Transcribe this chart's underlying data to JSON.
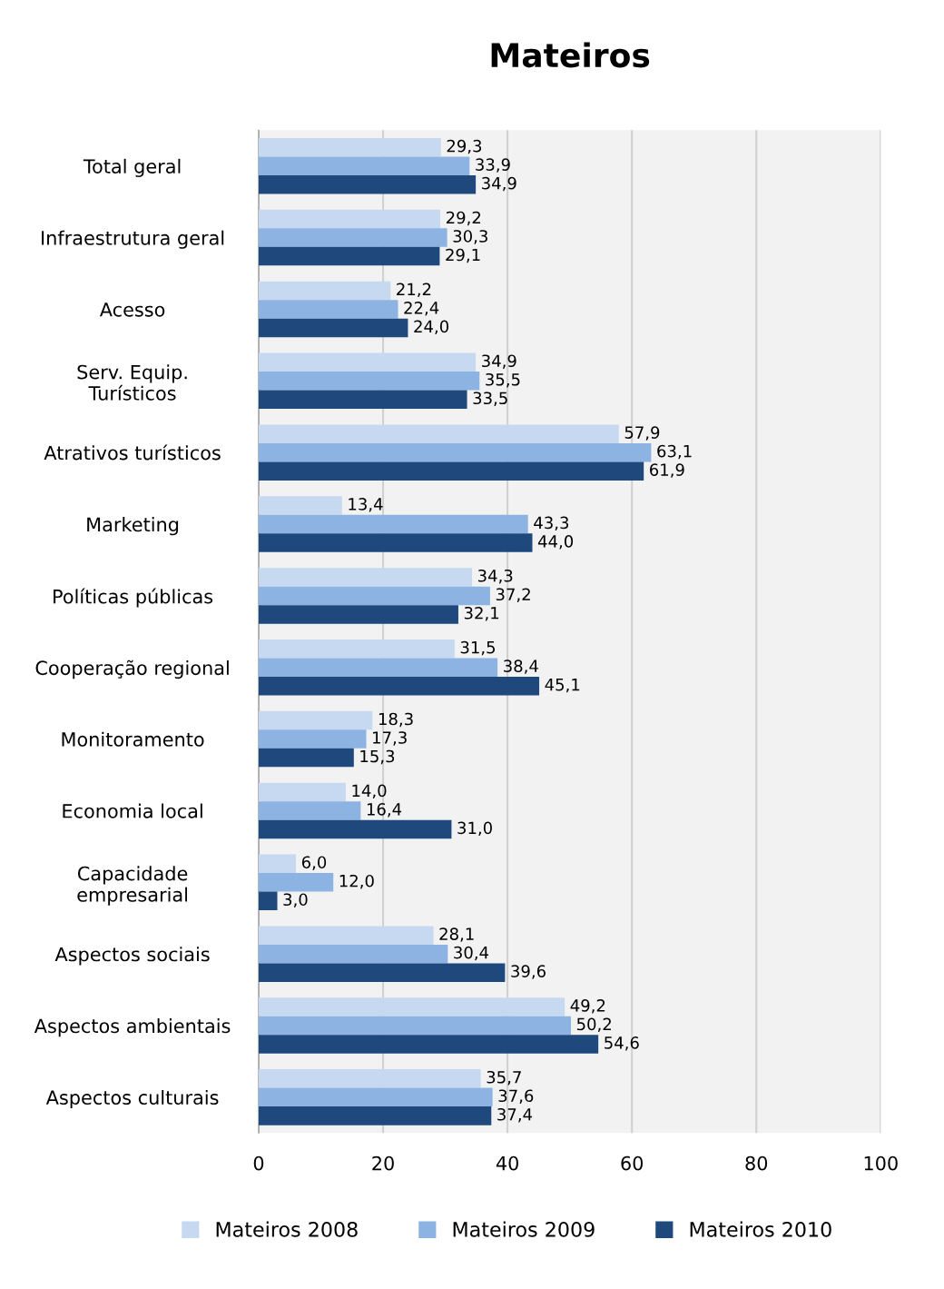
{
  "chart_data": {
    "type": "bar",
    "orientation": "horizontal",
    "title": "Mateiros",
    "categories": [
      "Total geral",
      "Infraestrutura geral",
      "Acesso",
      "Serv. Equip.\nTurísticos",
      "Atrativos turísticos",
      "Marketing",
      "Políticas públicas",
      "Cooperação regional",
      "Monitoramento",
      "Economia local",
      "Capacidade\nempresarial",
      "Aspectos sociais",
      "Aspectos ambientais",
      "Aspectos culturais"
    ],
    "series": [
      {
        "name": "Mateiros 2008",
        "color": "#c6d9f1",
        "values": [
          29.3,
          29.2,
          21.2,
          34.9,
          57.9,
          13.4,
          34.3,
          31.5,
          18.3,
          14.0,
          6.0,
          28.1,
          49.2,
          35.7
        ],
        "value_labels": [
          "29,3",
          "29,2",
          "21,2",
          "34,9",
          "57,9",
          "13,4",
          "34,3",
          "31,5",
          "18,3",
          "14,0",
          "6,0",
          "28,1",
          "49,2",
          "35,7"
        ]
      },
      {
        "name": "Mateiros 2009",
        "color": "#8db3e2",
        "values": [
          33.9,
          30.3,
          22.4,
          35.5,
          63.1,
          43.3,
          37.2,
          38.4,
          17.3,
          16.4,
          12.0,
          30.4,
          50.2,
          37.6
        ],
        "value_labels": [
          "33,9",
          "30,3",
          "22,4",
          "35,5",
          "63,1",
          "43,3",
          "37,2",
          "38,4",
          "17,3",
          "16,4",
          "12,0",
          "30,4",
          "50,2",
          "37,6"
        ]
      },
      {
        "name": "Mateiros 2010",
        "color": "#1f497d",
        "values": [
          34.9,
          29.1,
          24.0,
          33.5,
          61.9,
          44.0,
          32.1,
          45.1,
          15.3,
          31.0,
          3.0,
          39.6,
          54.6,
          37.4
        ],
        "value_labels": [
          "34,9",
          "29,1",
          "24,0",
          "33,5",
          "61,9",
          "44,0",
          "32,1",
          "45,1",
          "15,3",
          "31,0",
          "3,0",
          "39,6",
          "54,6",
          "37,4"
        ]
      }
    ],
    "xlim": [
      0,
      100
    ],
    "xticks": [
      0,
      20,
      40,
      60,
      80,
      100
    ],
    "grid": "x",
    "legend": "bottom"
  }
}
